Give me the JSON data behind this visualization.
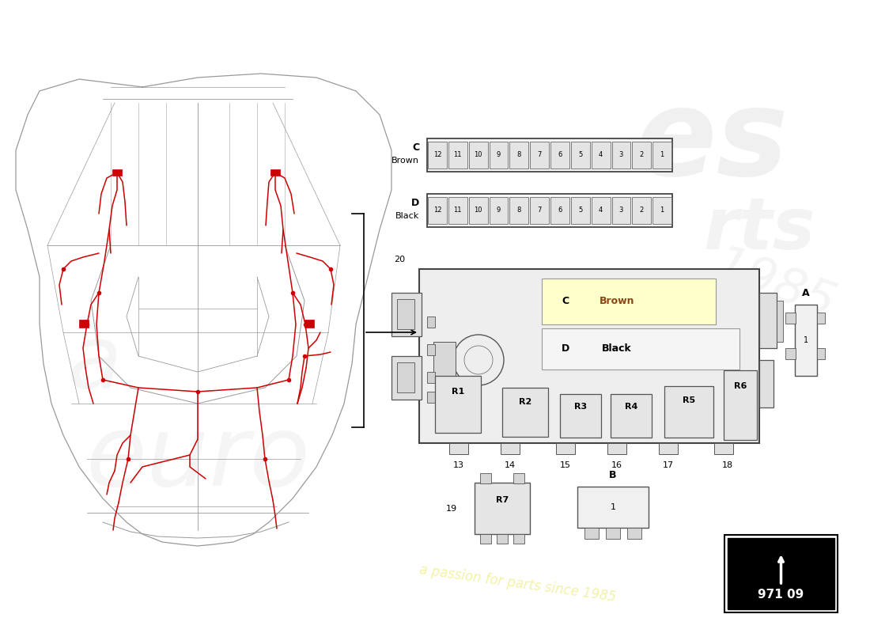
{
  "bg_color": "#ffffff",
  "car_body_color": "#c8c8c8",
  "car_line_color": "#999999",
  "wiring_color": "#cc0000",
  "fuse_fill": "#f0f0f0",
  "fuse_slot_fill": "#e0e0e0",
  "fuse_edge": "#555555",
  "yellow_fill": "#ffffcc",
  "white_fill": "#ffffff",
  "title_number": "971 09",
  "watermark_text": "a passion for parts since 1985",
  "c_brown_color": "#8B4513",
  "d_black_color": "#000000",
  "fuse_counts": 12,
  "relay_labels": [
    "R1",
    "R2",
    "R3",
    "R4",
    "R5",
    "R6"
  ],
  "zone_numbers_main": [
    "13",
    "14",
    "15",
    "16",
    "17",
    "18"
  ],
  "zone_number_20": "20",
  "zone_number_19": "19",
  "connector_a_label": "A",
  "connector_b_label": "B"
}
